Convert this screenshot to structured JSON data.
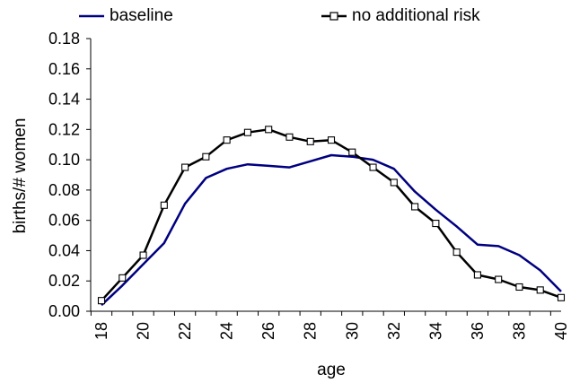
{
  "chart_data": {
    "type": "line",
    "title": "",
    "xlabel": "age",
    "ylabel": "births/# women",
    "xlim": [
      18,
      40
    ],
    "ylim": [
      0,
      0.18
    ],
    "x_ticks": [
      "18",
      "20",
      "22",
      "24",
      "26",
      "28",
      "30",
      "32",
      "34",
      "36",
      "38",
      "40"
    ],
    "y_ticks": [
      "0.00",
      "0.02",
      "0.04",
      "0.06",
      "0.08",
      "0.10",
      "0.12",
      "0.14",
      "0.16",
      "0.18"
    ],
    "grid": false,
    "legend_position": "top",
    "series": [
      {
        "name": "baseline",
        "color": "#000080",
        "marker": "none",
        "x": [
          18,
          19,
          20,
          21,
          22,
          23,
          24,
          25,
          26,
          27,
          28,
          29,
          30,
          31,
          32,
          33,
          34,
          35,
          36,
          37,
          38,
          39,
          40
        ],
        "values": [
          0.004,
          0.017,
          0.031,
          0.045,
          0.071,
          0.088,
          0.094,
          0.097,
          0.096,
          0.095,
          0.099,
          0.103,
          0.102,
          0.1,
          0.094,
          0.079,
          0.067,
          0.056,
          0.044,
          0.043,
          0.037,
          0.027,
          0.013
        ]
      },
      {
        "name": "no additional risk",
        "color": "#000000",
        "marker": "square",
        "x": [
          18,
          19,
          20,
          21,
          22,
          23,
          24,
          25,
          26,
          27,
          28,
          29,
          30,
          31,
          32,
          33,
          34,
          35,
          36,
          37,
          38,
          39,
          40
        ],
        "values": [
          0.007,
          0.022,
          0.037,
          0.07,
          0.095,
          0.102,
          0.113,
          0.118,
          0.12,
          0.115,
          0.112,
          0.113,
          0.105,
          0.095,
          0.085,
          0.069,
          0.058,
          0.039,
          0.024,
          0.021,
          0.016,
          0.014,
          0.009
        ]
      }
    ]
  }
}
